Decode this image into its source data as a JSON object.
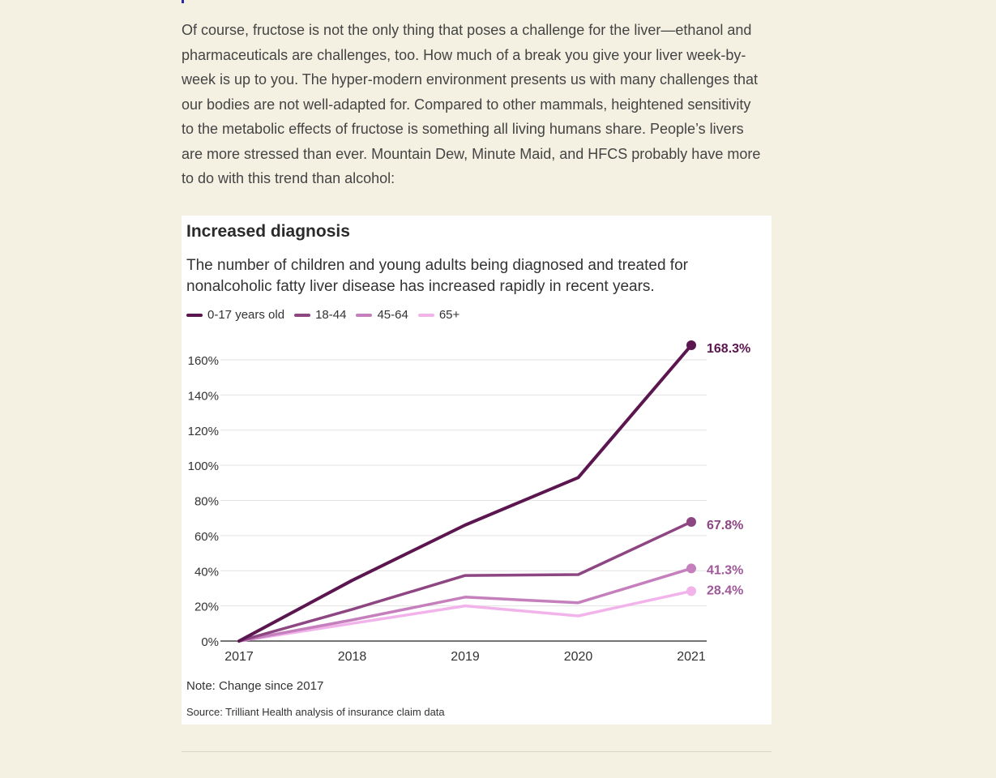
{
  "article": {
    "paragraph": "Of course, fructose is not the only thing that poses a challenge for the liver—ethanol and pharmaceuticals are challenges, too. How much of a break you give your liver week-by-week is up to you. The hyper-modern environment presents us with many challenges that our bodies are not well-adapted for. Compared to other mammals, heightened sensitivity to the metabolic effects of fructose is something all living humans share. People’s livers are more stressed than ever. Mountain Dew, Minute Maid, and HFCS probably have more to do with this trend than alcohol:"
  },
  "chart_data": {
    "type": "line",
    "title": "Increased diagnosis",
    "subtitle": "The number of children and young adults being diagnosed and treated for nonalcoholic fatty liver disease has increased rapidly in recent years.",
    "x": [
      "2017",
      "2018",
      "2019",
      "2020",
      "2021"
    ],
    "ylim": [
      0,
      170
    ],
    "yticks": [
      0,
      20,
      40,
      60,
      80,
      100,
      120,
      140,
      160
    ],
    "ytick_labels": [
      "0%",
      "20%",
      "40%",
      "60%",
      "80%",
      "100%",
      "120%",
      "140%",
      "160%"
    ],
    "grid": true,
    "legend_position": "top-left",
    "series": [
      {
        "name": "0-17 years old",
        "color": "#5b1650",
        "values": [
          0,
          34.5,
          66,
          93,
          168.3
        ],
        "end_label": "168.3%"
      },
      {
        "name": "18-44",
        "color": "#8e4683",
        "values": [
          0,
          18,
          37.3,
          37.8,
          67.8
        ],
        "end_label": "67.8%"
      },
      {
        "name": "45-64",
        "color": "#c57fbc",
        "values": [
          0,
          12,
          25,
          21.8,
          41.3
        ],
        "end_label": "41.3%"
      },
      {
        "name": "65+",
        "color": "#f2b3ea",
        "values": [
          0,
          10,
          20,
          14.3,
          28.4
        ],
        "end_label": "28.4%"
      }
    ],
    "label_colors": [
      "#5b1650",
      "#8e4683",
      "#a0589a",
      "#a0589a"
    ],
    "note": "Note: Change since 2017",
    "source": "Source: Trilliant Health analysis of insurance claim data"
  }
}
